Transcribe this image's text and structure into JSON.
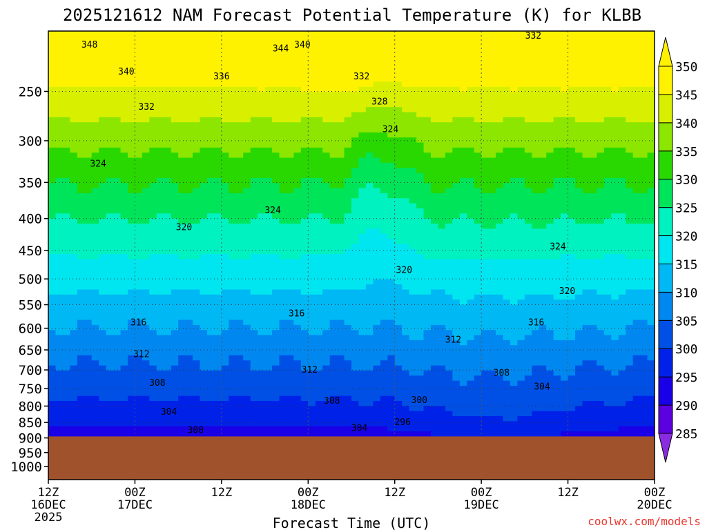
{
  "chart_data": {
    "type": "heatmap",
    "title": "2025121612 NAM Forecast Potential Temperature (K) for KLBB",
    "xlabel": "Forecast Time (UTC)",
    "ylabel": "",
    "credit": "coolwx.com/models",
    "x_ticks": [
      {
        "hours": 0,
        "top": "12Z",
        "mid": "16DEC",
        "bot": "2025"
      },
      {
        "hours": 12,
        "top": "00Z",
        "mid": "17DEC",
        "bot": ""
      },
      {
        "hours": 24,
        "top": "12Z",
        "mid": "",
        "bot": ""
      },
      {
        "hours": 36,
        "top": "00Z",
        "mid": "18DEC",
        "bot": ""
      },
      {
        "hours": 48,
        "top": "12Z",
        "mid": "",
        "bot": ""
      },
      {
        "hours": 60,
        "top": "00Z",
        "mid": "19DEC",
        "bot": ""
      },
      {
        "hours": 72,
        "top": "12Z",
        "mid": "",
        "bot": ""
      },
      {
        "hours": 84,
        "top": "00Z",
        "mid": "20DEC",
        "bot": ""
      }
    ],
    "x_range_hours": [
      0,
      84
    ],
    "y_scale": "log",
    "y_range_hPa": [
      1050,
      200
    ],
    "y_ticks": [
      250,
      300,
      350,
      400,
      450,
      500,
      550,
      600,
      650,
      700,
      750,
      800,
      850,
      900,
      950,
      1000
    ],
    "surface_pressure_hPa": 895,
    "surface_color": "#a0522d",
    "grid": true,
    "colorbar": {
      "levels": [
        285,
        290,
        295,
        300,
        305,
        310,
        315,
        320,
        325,
        330,
        335,
        340,
        345,
        350
      ],
      "colors": [
        "#8a2be2",
        "#5c00e0",
        "#1a00e6",
        "#0022e8",
        "#0050e6",
        "#0088f0",
        "#00b8f4",
        "#00e6f0",
        "#00f2c0",
        "#00e45a",
        "#28d800",
        "#8ce600",
        "#d8f000",
        "#fff200"
      ],
      "extend": "both"
    },
    "contour_labels": [
      {
        "text": "348",
        "hours": 5.7,
        "p": 210
      },
      {
        "text": "344",
        "hours": 32.2,
        "p": 213
      },
      {
        "text": "340",
        "hours": 35.2,
        "p": 210
      },
      {
        "text": "340",
        "hours": 10.8,
        "p": 232
      },
      {
        "text": "336",
        "hours": 24.0,
        "p": 236
      },
      {
        "text": "332",
        "hours": 13.6,
        "p": 264
      },
      {
        "text": "332",
        "hours": 43.4,
        "p": 236
      },
      {
        "text": "332",
        "hours": 67.2,
        "p": 203
      },
      {
        "text": "328",
        "hours": 45.9,
        "p": 259
      },
      {
        "text": "324",
        "hours": 47.4,
        "p": 287
      },
      {
        "text": "324",
        "hours": 6.9,
        "p": 326
      },
      {
        "text": "324",
        "hours": 31.1,
        "p": 387
      },
      {
        "text": "324",
        "hours": 70.6,
        "p": 443
      },
      {
        "text": "320",
        "hours": 18.8,
        "p": 412
      },
      {
        "text": "320",
        "hours": 49.3,
        "p": 483
      },
      {
        "text": "320",
        "hours": 71.9,
        "p": 522
      },
      {
        "text": "316",
        "hours": 12.5,
        "p": 586
      },
      {
        "text": "316",
        "hours": 34.4,
        "p": 567
      },
      {
        "text": "316",
        "hours": 67.6,
        "p": 586
      },
      {
        "text": "312",
        "hours": 12.9,
        "p": 659
      },
      {
        "text": "312",
        "hours": 36.2,
        "p": 698
      },
      {
        "text": "312",
        "hours": 56.1,
        "p": 625
      },
      {
        "text": "308",
        "hours": 15.1,
        "p": 733
      },
      {
        "text": "308",
        "hours": 39.3,
        "p": 783
      },
      {
        "text": "308",
        "hours": 62.8,
        "p": 706
      },
      {
        "text": "304",
        "hours": 16.7,
        "p": 816
      },
      {
        "text": "304",
        "hours": 43.1,
        "p": 866
      },
      {
        "text": "304",
        "hours": 68.4,
        "p": 743
      },
      {
        "text": "300",
        "hours": 20.4,
        "p": 873
      },
      {
        "text": "300",
        "hours": 51.4,
        "p": 781
      },
      {
        "text": "296",
        "hours": 49.1,
        "p": 847
      }
    ]
  }
}
